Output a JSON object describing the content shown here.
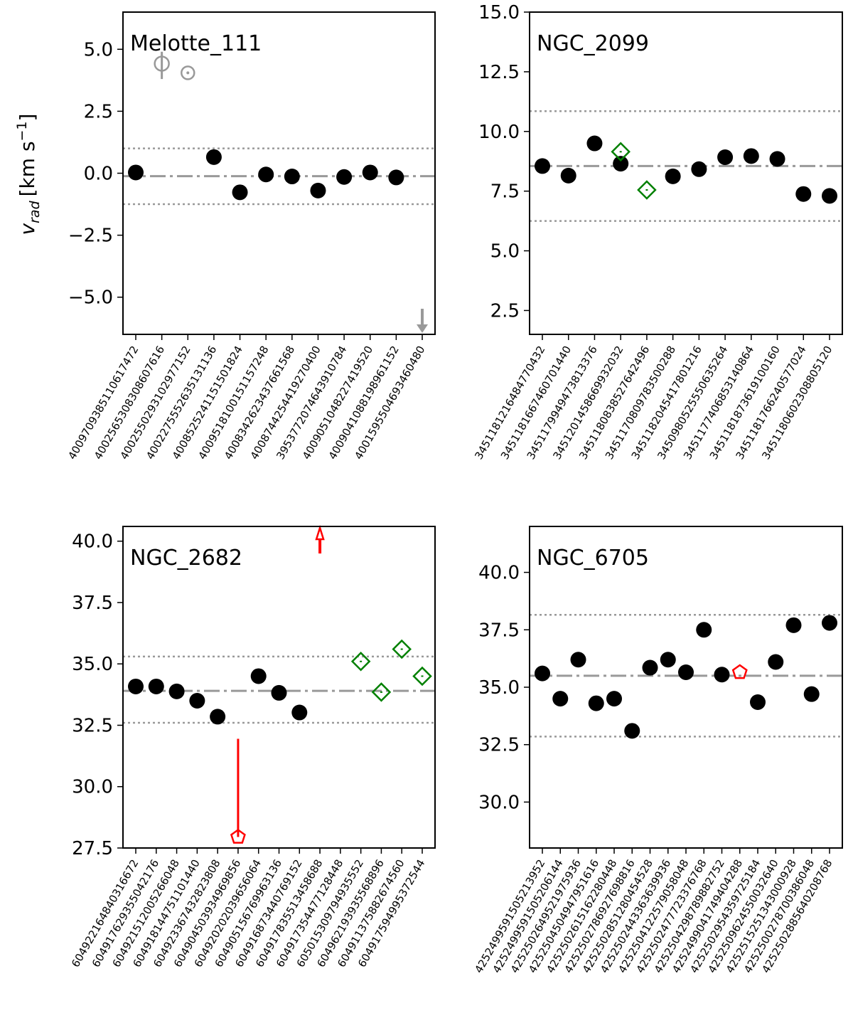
{
  "figure": {
    "ylabel_main": "v",
    "ylabel_sub": "rad",
    "ylabel_unit_pre": "[km s",
    "ylabel_unit_exp": "−1",
    "ylabel_unit_post": "]"
  },
  "chart_data": [
    {
      "type": "scatter",
      "title": "Melotte_111",
      "ylabel": "v_rad [km s^-1]",
      "ylim": [
        -6.5,
        6.5
      ],
      "yticks": [
        -5.0,
        -2.5,
        0.0,
        2.5,
        5.0
      ],
      "ytick_labels": [
        "−5.0",
        "−2.5",
        "0.0",
        "2.5",
        "5.0"
      ],
      "xtick_labels": [
        "4009709385110617472",
        "4002565308308607616",
        "4002550293102977152",
        "4002275552635131136",
        "4008525241151501824",
        "4009518100151157248",
        "4008342623437661568",
        "4008744254419270400",
        "3953772074643910784",
        "4009051048227419520",
        "4009041088198961152",
        "4001595504693460480"
      ],
      "mean": -0.12,
      "band": [
        -1.25,
        1.0
      ],
      "points": [
        {
          "x": 0,
          "y": 0.03,
          "marker": "circle",
          "color": "#000000"
        },
        {
          "x": 1,
          "y": 4.42,
          "marker": "open-circle",
          "color": "#999999",
          "err": [
            3.8,
            4.9
          ]
        },
        {
          "x": 2,
          "y": 4.05,
          "marker": "open-circle-dot",
          "color": "#999999"
        },
        {
          "x": 3,
          "y": 0.65,
          "marker": "circle",
          "color": "#000000"
        },
        {
          "x": 4,
          "y": -0.77,
          "marker": "circle",
          "color": "#000000"
        },
        {
          "x": 5,
          "y": -0.05,
          "marker": "circle",
          "color": "#000000"
        },
        {
          "x": 6,
          "y": -0.13,
          "marker": "circle",
          "color": "#000000"
        },
        {
          "x": 7,
          "y": -0.7,
          "marker": "circle",
          "color": "#000000"
        },
        {
          "x": 8,
          "y": -0.15,
          "marker": "circle",
          "color": "#000000"
        },
        {
          "x": 9,
          "y": 0.03,
          "marker": "circle",
          "color": "#000000"
        },
        {
          "x": 10,
          "y": -0.17,
          "marker": "circle",
          "color": "#000000"
        },
        {
          "x": 11,
          "y": -6.45,
          "marker": "arrow-down",
          "color": "#999999"
        }
      ]
    },
    {
      "type": "scatter",
      "title": "NGC_2099",
      "ylabel": "",
      "ylim": [
        1.5,
        15.0
      ],
      "yticks": [
        2.5,
        5.0,
        7.5,
        10.0,
        12.5,
        15.0
      ],
      "ytick_labels": [
        "2.5",
        "5.0",
        "7.5",
        "10.0",
        "12.5",
        "15.0"
      ],
      "xtick_labels": [
        "3451181216484770432",
        "3451181667460701440",
        "3451179949473813376",
        "3451201458669932032",
        "3451180838527642496",
        "3451170809783500288",
        "3451182045417801216",
        "3450980525550635264",
        "3451177406853140864",
        "3451181873619100160",
        "3451181766240577024",
        "3451180602308805120"
      ],
      "mean": 8.55,
      "band": [
        6.25,
        10.85
      ],
      "points": [
        {
          "x": 0,
          "y": 8.55,
          "marker": "circle",
          "color": "#000000"
        },
        {
          "x": 1,
          "y": 8.15,
          "marker": "circle",
          "color": "#000000"
        },
        {
          "x": 2,
          "y": 9.5,
          "marker": "circle",
          "color": "#000000"
        },
        {
          "x": 3,
          "y": 8.65,
          "marker": "circle",
          "color": "#000000"
        },
        {
          "x": 3,
          "y": 9.15,
          "marker": "open-diamond",
          "color": "#008000"
        },
        {
          "x": 4,
          "y": 7.55,
          "marker": "open-diamond",
          "color": "#008000"
        },
        {
          "x": 5,
          "y": 8.12,
          "marker": "circle",
          "color": "#000000"
        },
        {
          "x": 6,
          "y": 8.42,
          "marker": "circle",
          "color": "#000000"
        },
        {
          "x": 7,
          "y": 8.92,
          "marker": "circle",
          "color": "#000000"
        },
        {
          "x": 8,
          "y": 8.97,
          "marker": "circle",
          "color": "#000000"
        },
        {
          "x": 9,
          "y": 8.85,
          "marker": "circle",
          "color": "#000000"
        },
        {
          "x": 10,
          "y": 7.38,
          "marker": "circle",
          "color": "#000000"
        },
        {
          "x": 11,
          "y": 7.3,
          "marker": "circle",
          "color": "#000000"
        }
      ]
    },
    {
      "type": "scatter",
      "title": "NGC_2682",
      "ylabel": "",
      "ylim": [
        27.5,
        40.6
      ],
      "yticks": [
        27.5,
        30.0,
        32.5,
        35.0,
        37.5,
        40.0
      ],
      "ytick_labels": [
        "27.5",
        "30.0",
        "32.5",
        "35.0",
        "37.5",
        "40.0"
      ],
      "xtick_labels": [
        "604922164840316672",
        "604917629355042176",
        "604921512005266048",
        "604918144751101440",
        "604923367432823808",
        "604904503934969856",
        "604920202039656064",
        "604905156769963136",
        "604916873440769152",
        "604917835513458688",
        "604917354477128448",
        "605015309794935552",
        "604962193935568896",
        "604911375882674560",
        "604917594995372544"
      ],
      "mean": 33.9,
      "band": [
        32.6,
        35.3
      ],
      "points": [
        {
          "x": 0,
          "y": 34.08,
          "marker": "circle",
          "color": "#000000"
        },
        {
          "x": 1,
          "y": 34.08,
          "marker": "circle",
          "color": "#000000"
        },
        {
          "x": 2,
          "y": 33.88,
          "marker": "circle",
          "color": "#000000"
        },
        {
          "x": 3,
          "y": 33.5,
          "marker": "circle",
          "color": "#000000"
        },
        {
          "x": 4,
          "y": 32.85,
          "marker": "circle",
          "color": "#000000"
        },
        {
          "x": 5,
          "y": 27.95,
          "marker": "open-pentagon",
          "color": "#ff0000",
          "err": [
            27.95,
            31.95
          ]
        },
        {
          "x": 6,
          "y": 34.5,
          "marker": "circle",
          "color": "#000000"
        },
        {
          "x": 7,
          "y": 33.82,
          "marker": "circle",
          "color": "#000000"
        },
        {
          "x": 8,
          "y": 33.02,
          "marker": "circle",
          "color": "#000000"
        },
        {
          "x": 9,
          "y": 40.3,
          "marker": "arrow-up",
          "color": "#ff0000"
        },
        {
          "x": 11,
          "y": 35.1,
          "marker": "open-diamond",
          "color": "#008000"
        },
        {
          "x": 12,
          "y": 33.85,
          "marker": "open-diamond",
          "color": "#008000"
        },
        {
          "x": 13,
          "y": 35.6,
          "marker": "open-diamond",
          "color": "#008000"
        },
        {
          "x": 14,
          "y": 34.5,
          "marker": "open-diamond",
          "color": "#008000"
        }
      ]
    },
    {
      "type": "scatter",
      "title": "NGC_6705",
      "ylabel": "",
      "ylim": [
        28.0,
        42.0
      ],
      "yticks": [
        30.0,
        32.5,
        35.0,
        37.5,
        40.0
      ],
      "ytick_labels": [
        "30.0",
        "32.5",
        "35.0",
        "37.5",
        "40.0"
      ],
      "xtick_labels": [
        "4252499591505213952",
        "4252499591505206144",
        "4252502649521975936",
        "4252504504947951616",
        "4252502615162280448",
        "4252502786927698816",
        "4252502851280454528",
        "4252502443363639936",
        "4252504122579058048",
        "4252502477723376768",
        "4252504298789882752",
        "4252499041749404288",
        "4252502954359725184",
        "4252509624550032640",
        "4252515251343000928",
        "4252500278700386048",
        "4252502885640208768"
      ],
      "mean": 35.5,
      "band": [
        32.85,
        38.15
      ],
      "points": [
        {
          "x": 0,
          "y": 35.6,
          "marker": "circle",
          "color": "#000000"
        },
        {
          "x": 1,
          "y": 34.5,
          "marker": "circle",
          "color": "#000000"
        },
        {
          "x": 2,
          "y": 36.2,
          "marker": "circle",
          "color": "#000000"
        },
        {
          "x": 3,
          "y": 34.3,
          "marker": "circle",
          "color": "#000000"
        },
        {
          "x": 4,
          "y": 34.5,
          "marker": "circle",
          "color": "#000000"
        },
        {
          "x": 5,
          "y": 33.1,
          "marker": "circle",
          "color": "#000000"
        },
        {
          "x": 6,
          "y": 35.85,
          "marker": "circle",
          "color": "#000000"
        },
        {
          "x": 7,
          "y": 36.2,
          "marker": "circle",
          "color": "#000000"
        },
        {
          "x": 8,
          "y": 35.65,
          "marker": "circle",
          "color": "#000000"
        },
        {
          "x": 9,
          "y": 37.5,
          "marker": "circle",
          "color": "#000000"
        },
        {
          "x": 10,
          "y": 35.55,
          "marker": "circle",
          "color": "#000000"
        },
        {
          "x": 11,
          "y": 35.65,
          "marker": "open-pentagon",
          "color": "#ff0000"
        },
        {
          "x": 12,
          "y": 34.35,
          "marker": "circle",
          "color": "#000000"
        },
        {
          "x": 13,
          "y": 36.1,
          "marker": "circle",
          "color": "#000000"
        },
        {
          "x": 14,
          "y": 37.7,
          "marker": "circle",
          "color": "#000000"
        },
        {
          "x": 15,
          "y": 34.7,
          "marker": "circle",
          "color": "#000000"
        },
        {
          "x": 16,
          "y": 37.8,
          "marker": "circle",
          "color": "#000000"
        }
      ]
    }
  ]
}
